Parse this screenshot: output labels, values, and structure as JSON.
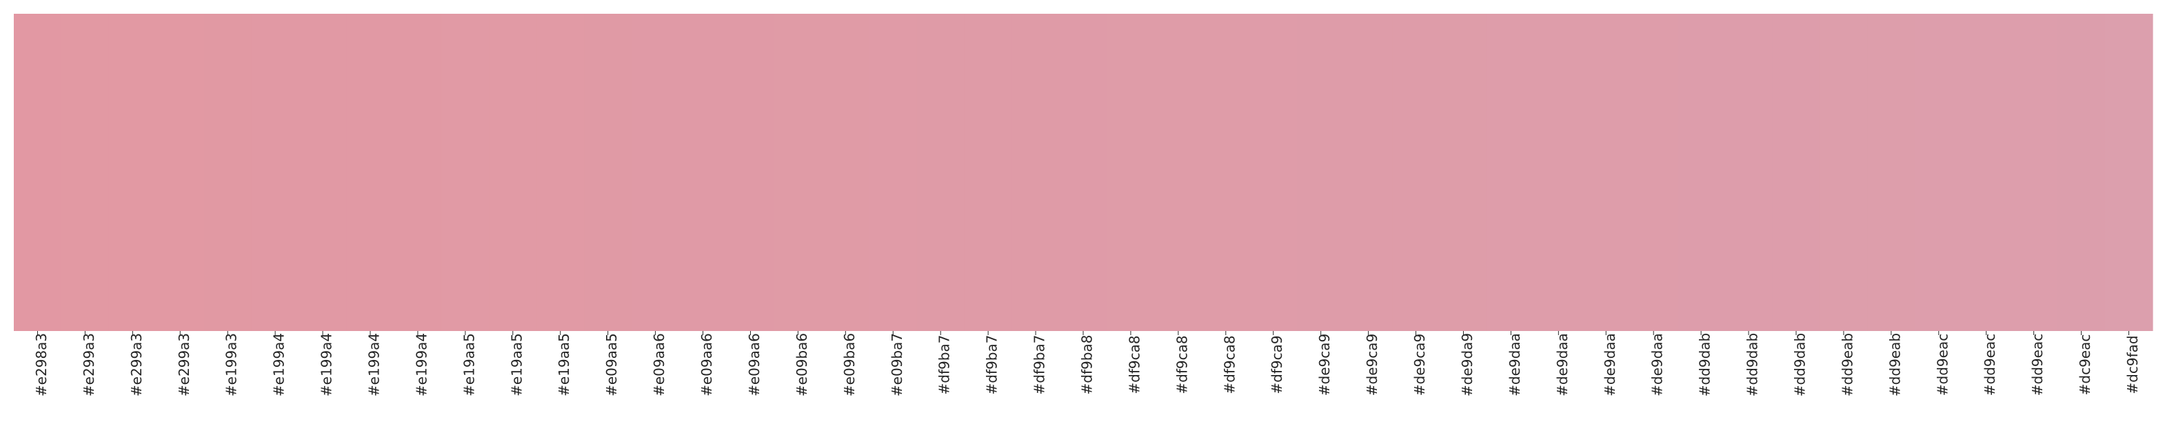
{
  "chart_data": {
    "type": "heatmap",
    "title": "",
    "xlabel": "",
    "ylabel": "",
    "grid": false,
    "legend": "none",
    "colors": [
      "#e298a3",
      "#e299a3",
      "#e299a3",
      "#e299a3",
      "#e199a3",
      "#e199a4",
      "#e199a4",
      "#e199a4",
      "#e199a4",
      "#e19aa5",
      "#e19aa5",
      "#e19aa5",
      "#e09aa5",
      "#e09aa6",
      "#e09aa6",
      "#e09aa6",
      "#e09ba6",
      "#e09ba6",
      "#e09ba7",
      "#df9ba7",
      "#df9ba7",
      "#df9ba7",
      "#df9ba8",
      "#df9ca8",
      "#df9ca8",
      "#df9ca8",
      "#df9ca9",
      "#de9ca9",
      "#de9ca9",
      "#de9ca9",
      "#de9da9",
      "#de9daa",
      "#de9daa",
      "#de9daa",
      "#de9daa",
      "#dd9dab",
      "#dd9dab",
      "#dd9dab",
      "#dd9eab",
      "#dd9eab",
      "#dd9eac",
      "#dd9eac",
      "#dd9eac",
      "#dc9eac",
      "#dc9fad"
    ],
    "tick_labels": [
      "#e298a3",
      "#e299a3",
      "#e299a3",
      "#e299a3",
      "#e199a3",
      "#e199a4",
      "#e199a4",
      "#e199a4",
      "#e199a4",
      "#e19aa5",
      "#e19aa5",
      "#e19aa5",
      "#e09aa5",
      "#e09aa6",
      "#e09aa6",
      "#e09aa6",
      "#e09ba6",
      "#e09ba6",
      "#e09ba7",
      "#df9ba7",
      "#df9ba7",
      "#df9ba7",
      "#df9ba8",
      "#df9ca8",
      "#df9ca8",
      "#df9ca8",
      "#df9ca9",
      "#de9ca9",
      "#de9ca9",
      "#de9ca9",
      "#de9da9",
      "#de9daa",
      "#de9daa",
      "#de9daa",
      "#de9daa",
      "#dd9dab",
      "#dd9dab",
      "#dd9dab",
      "#dd9eab",
      "#dd9eab",
      "#dd9eac",
      "#dd9eac",
      "#dd9eac",
      "#dc9eac",
      "#dc9fad"
    ]
  }
}
